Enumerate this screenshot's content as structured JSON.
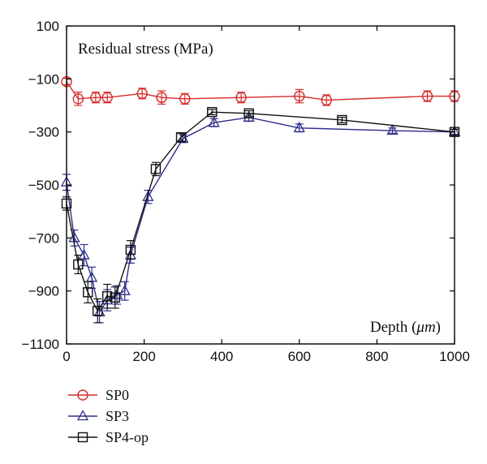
{
  "chart_data": {
    "type": "line",
    "ylabel": "Residual stress (MPa)",
    "xlabel_prefix": "Depth (",
    "xlabel_unit": "μm",
    "xlabel_suffix": ")",
    "xlim": [
      0,
      1000
    ],
    "ylim": [
      -1100,
      100
    ],
    "x_ticks": [
      0,
      200,
      400,
      600,
      800,
      1000
    ],
    "x_tick_labels": [
      "0",
      "200",
      "400",
      "600",
      "800",
      "1000"
    ],
    "y_ticks": [
      100,
      -100,
      -300,
      -500,
      -700,
      -900,
      -1100
    ],
    "y_tick_labels": [
      "100",
      "−100",
      "−300",
      "−500",
      "−700",
      "−900",
      "−1100"
    ],
    "grid": false,
    "legend_position": "below plot",
    "series": [
      {
        "name": "SP0",
        "color": "#d42a2a",
        "marker": "circle",
        "x": [
          0,
          30,
          75,
          105,
          195,
          245,
          305,
          450,
          600,
          670,
          930,
          1000
        ],
        "y": [
          -110,
          -175,
          -170,
          -170,
          -155,
          -170,
          -175,
          -170,
          -165,
          -180,
          -165,
          -165
        ],
        "err": [
          12,
          25,
          20,
          20,
          20,
          25,
          20,
          20,
          25,
          20,
          20,
          20
        ]
      },
      {
        "name": "SP3",
        "color": "#2e2e8c",
        "marker": "triangle",
        "x": [
          0,
          20,
          45,
          65,
          85,
          105,
          130,
          150,
          165,
          210,
          300,
          380,
          470,
          600,
          840,
          1000
        ],
        "y": [
          -490,
          -700,
          -765,
          -850,
          -980,
          -935,
          -915,
          -900,
          -765,
          -545,
          -325,
          -265,
          -245,
          -285,
          -295,
          -300
        ],
        "err": [
          30,
          30,
          40,
          40,
          40,
          40,
          35,
          35,
          30,
          25,
          15,
          15,
          15,
          15,
          10,
          10
        ]
      },
      {
        "name": "SP4-op",
        "color": "#111111",
        "marker": "square",
        "x": [
          0,
          30,
          55,
          80,
          105,
          125,
          165,
          230,
          295,
          375,
          470,
          710,
          1000
        ],
        "y": [
          -570,
          -800,
          -905,
          -975,
          -920,
          -925,
          -745,
          -440,
          -320,
          -225,
          -230,
          -255,
          -300
        ],
        "err": [
          25,
          35,
          40,
          45,
          45,
          40,
          35,
          25,
          15,
          10,
          10,
          10,
          10
        ]
      }
    ]
  }
}
